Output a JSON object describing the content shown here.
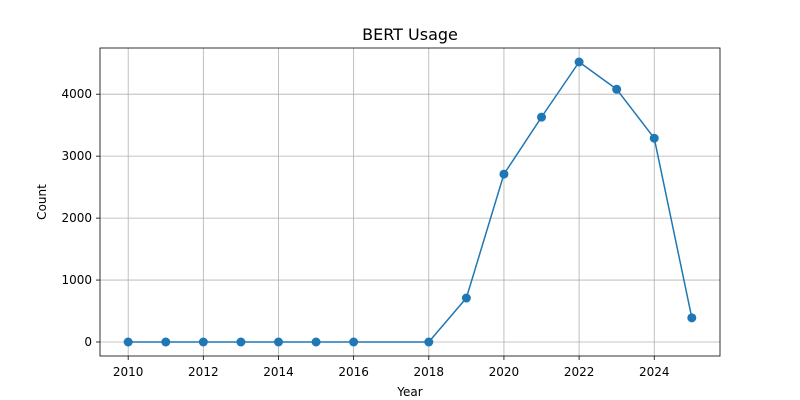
{
  "chart_data": {
    "type": "line",
    "title": "BERT Usage",
    "xlabel": "Year",
    "ylabel": "Count",
    "x": [
      2010,
      2011,
      2012,
      2013,
      2014,
      2015,
      2016,
      2018,
      2019,
      2020,
      2021,
      2022,
      2023,
      2024,
      2025
    ],
    "series": [
      {
        "values": [
          0,
          0,
          0,
          0,
          0,
          0,
          0,
          0,
          710,
          2710,
          3630,
          4520,
          4080,
          3290,
          390
        ]
      }
    ],
    "xticks": [
      2010,
      2012,
      2014,
      2016,
      2018,
      2020,
      2022,
      2024
    ],
    "yticks": [
      0,
      1000,
      2000,
      3000,
      4000
    ],
    "xlim": [
      2009.25,
      2025.75
    ],
    "ylim": [
      -226,
      4746
    ],
    "grid": true,
    "colors": {
      "line": "#1f77b4",
      "marker": "#1f77b4"
    }
  }
}
